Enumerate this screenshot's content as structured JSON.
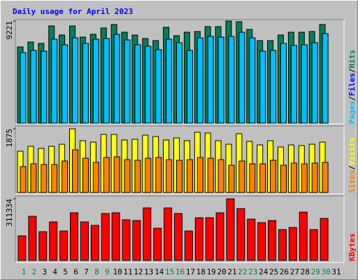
{
  "chart_data": {
    "type": "bar",
    "title": "Daily usage for April 2023",
    "categories": [
      "1",
      "2",
      "3",
      "4",
      "5",
      "6",
      "7",
      "8",
      "9",
      "10",
      "11",
      "12",
      "13",
      "14",
      "15",
      "16",
      "17",
      "18",
      "19",
      "20",
      "21",
      "22",
      "23",
      "24",
      "25",
      "26",
      "27",
      "28",
      "29",
      "30",
      "31"
    ],
    "category_colors": [
      "#008040",
      "#008040",
      "#000000",
      "#000000",
      "#000000",
      "#000000",
      "#000000",
      "#008040",
      "#008040",
      "#000000",
      "#000000",
      "#000000",
      "#000000",
      "#000000",
      "#008040",
      "#008040",
      "#000000",
      "#000000",
      "#000000",
      "#000000",
      "#000000",
      "#008040",
      "#008040",
      "#000000",
      "#000000",
      "#000000",
      "#000000",
      "#000000",
      "#008040",
      "#008040",
      "#000000"
    ],
    "legend_separator": "/",
    "panels": [
      {
        "ylim": [
          0,
          9221
        ],
        "yticks": [
          9221
        ],
        "series": [
          {
            "name": "Hits",
            "color": "#00805c",
            "values": [
              6884,
              7327,
              7200,
              8779,
              7958,
              8779,
              7769,
              8021,
              8590,
              8906,
              8211,
              7958,
              7642,
              7453,
              8653,
              7895,
              8211,
              8274,
              8716,
              8716,
              9221,
              9158,
              8463,
              7453,
              7453,
              7958,
              8211,
              8211,
              8274,
              8906,
              null
            ]
          },
          {
            "name": "Files",
            "color": "#0000ff",
            "values": [
              6379,
              6568,
              6505,
              7579,
              7074,
              7705,
              7200,
              7579,
              7642,
              8021,
              7516,
              7074,
              6948,
              6632,
              7579,
              7263,
              6568,
              7705,
              7832,
              7769,
              7832,
              8211,
              7705,
              6505,
              6568,
              7200,
              7011,
              7074,
              7263,
              8084,
              null
            ]
          },
          {
            "name": "Pages",
            "color": "#00c0ff",
            "values": [
              6379,
              6568,
              6505,
              7579,
              7074,
              7705,
              7200,
              7579,
              7642,
              8021,
              7516,
              7074,
              6948,
              6632,
              7579,
              7263,
              6568,
              7705,
              7832,
              7769,
              7832,
              8211,
              7705,
              6505,
              6568,
              7200,
              7011,
              7074,
              7263,
              8084,
              null
            ]
          }
        ]
      },
      {
        "ylim": [
          0,
          1875
        ],
        "yticks": [
          1875
        ],
        "series": [
          {
            "name": "Visits",
            "color": "#ffff00",
            "values": [
              1215,
              1360,
              1298,
              1360,
              1421,
              1875,
              1524,
              1483,
              1710,
              1710,
              1545,
              1566,
              1689,
              1648,
              1545,
              1607,
              1524,
              1772,
              1751,
              1524,
              1421,
              1730,
              1504,
              1401,
              1524,
              1339,
              1401,
              1380,
              1421,
              1483,
              null
            ]
          },
          {
            "name": "Sites",
            "color": "#ff8000",
            "values": [
              762,
              845,
              824,
              824,
              927,
              1257,
              1009,
              886,
              1030,
              1051,
              968,
              948,
              1009,
              1030,
              968,
              948,
              968,
              1030,
              1009,
              968,
              803,
              927,
              845,
              845,
              948,
              803,
              865,
              845,
              865,
              886,
              null
            ]
          }
        ]
      },
      {
        "ylim": [
          0,
          311334
        ],
        "yticks": [
          311334
        ],
        "series": [
          {
            "name": "KBytes",
            "color": "#ff0000",
            "values": [
              123830,
              222894,
              145058,
              194590,
              148596,
              240584,
              194590,
              176900,
              237046,
              240584,
              205204,
              201666,
              265350,
              162748,
              265350,
              237046,
              148596,
              215818,
              215818,
              240584,
              311334,
              261812,
              208742,
              191052,
              201666,
              155672,
              166286,
              244122,
              155672,
              212280,
              null
            ]
          }
        ]
      }
    ]
  }
}
